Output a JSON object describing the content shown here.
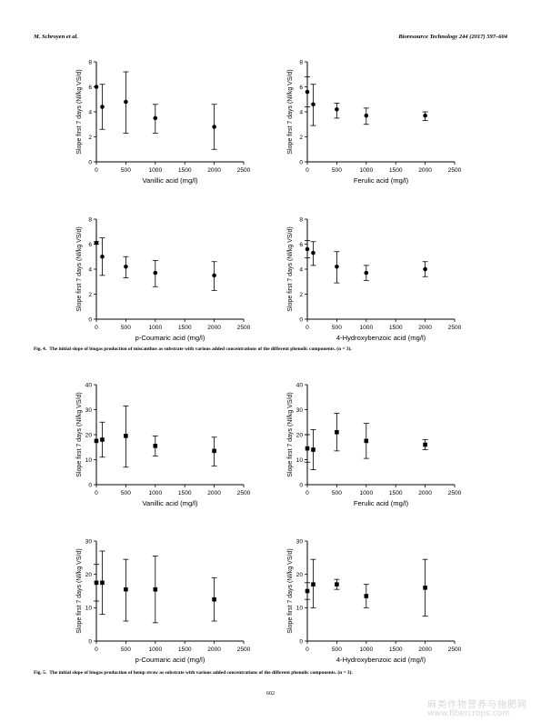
{
  "header": {
    "authors": "M. Schroyen et al.",
    "journal": "Bioresource Technology 244 (2017) 597–604"
  },
  "captions": {
    "fig4": {
      "label": "Fig. 4.",
      "text": "The initial slope of biogas production of miscanthus as substrate with various added concentrations of the different phenolic components. (n = 3)."
    },
    "fig5": {
      "label": "Fig. 5.",
      "text": "The initial slope of biogas production of hemp straw as substrate with various added concentrations of the different phenolic components. (n = 3)."
    }
  },
  "page_number": "602",
  "watermark": {
    "chinese": "麻类作物营养与施肥网",
    "url": "www.fibercrops.com"
  },
  "chart_data": [
    {
      "id": "f4a",
      "type": "scatter",
      "marker": "circle",
      "xlabel": "Vanillic acid (mg/l)",
      "ylabel": "Slope first 7 days (Nl/kg VS/d)",
      "xlim": [
        0,
        2500
      ],
      "ylim": [
        0,
        8
      ],
      "xticks": [
        "0",
        "500",
        "1000",
        "1500",
        "2000",
        "2500"
      ],
      "yticks": [
        "0",
        "2",
        "4",
        "6",
        "8"
      ],
      "points": [
        {
          "x": 0,
          "y": 6.0,
          "lo": 6.0,
          "hi": 6.0
        },
        {
          "x": 100,
          "y": 4.4,
          "lo": 2.6,
          "hi": 6.2
        },
        {
          "x": 500,
          "y": 4.8,
          "lo": 2.3,
          "hi": 7.2
        },
        {
          "x": 1000,
          "y": 3.5,
          "lo": 2.3,
          "hi": 4.6
        },
        {
          "x": 2000,
          "y": 2.8,
          "lo": 1.0,
          "hi": 4.6
        }
      ]
    },
    {
      "id": "f4b",
      "type": "scatter",
      "marker": "circle",
      "xlabel": "Ferulic acid (mg/l)",
      "ylabel": "Slope first 7 days (Nl/kg VS/d)",
      "xlim": [
        0,
        2500
      ],
      "ylim": [
        0,
        8
      ],
      "xticks": [
        "0",
        "500",
        "1000",
        "1500",
        "2000",
        "2500"
      ],
      "yticks": [
        "0",
        "2",
        "4",
        "6",
        "8"
      ],
      "points": [
        {
          "x": 0,
          "y": 5.6,
          "lo": 4.4,
          "hi": 6.8
        },
        {
          "x": 100,
          "y": 4.6,
          "lo": 2.9,
          "hi": 6.2
        },
        {
          "x": 500,
          "y": 4.2,
          "lo": 3.5,
          "hi": 4.7
        },
        {
          "x": 1000,
          "y": 3.7,
          "lo": 3.0,
          "hi": 4.3
        },
        {
          "x": 2000,
          "y": 3.7,
          "lo": 3.3,
          "hi": 4.0
        }
      ]
    },
    {
      "id": "f4c",
      "type": "scatter",
      "marker": "circle",
      "xlabel": "p-Coumaric acid (mg/l)",
      "ylabel": "Slope first 7 days (Nl/kg VS/d)",
      "xlim": [
        0,
        2500
      ],
      "ylim": [
        0,
        8
      ],
      "xticks": [
        "0",
        "500",
        "1000",
        "1500",
        "2000",
        "2500"
      ],
      "yticks": [
        "0",
        "2",
        "4",
        "6",
        "8"
      ],
      "points": [
        {
          "x": 0,
          "y": 6.1,
          "lo": 6.0,
          "hi": 6.2
        },
        {
          "x": 100,
          "y": 5.0,
          "lo": 3.5,
          "hi": 6.5
        },
        {
          "x": 500,
          "y": 4.2,
          "lo": 3.3,
          "hi": 5.0
        },
        {
          "x": 1000,
          "y": 3.7,
          "lo": 2.6,
          "hi": 4.7
        },
        {
          "x": 2000,
          "y": 3.5,
          "lo": 2.3,
          "hi": 4.6
        }
      ]
    },
    {
      "id": "f4d",
      "type": "scatter",
      "marker": "circle",
      "xlabel": "4-Hydroxybenzoic acid (mg/l)",
      "ylabel": "Slope first 7 days (Nl/kg VS/d)",
      "xlim": [
        0,
        2500
      ],
      "ylim": [
        0,
        8
      ],
      "xticks": [
        "0",
        "500",
        "1000",
        "1500",
        "2000",
        "2500"
      ],
      "yticks": [
        "0",
        "2",
        "4",
        "6",
        "8"
      ],
      "points": [
        {
          "x": 0,
          "y": 5.6,
          "lo": 4.9,
          "hi": 6.3
        },
        {
          "x": 100,
          "y": 5.3,
          "lo": 4.3,
          "hi": 6.2
        },
        {
          "x": 500,
          "y": 4.2,
          "lo": 2.9,
          "hi": 5.4
        },
        {
          "x": 1000,
          "y": 3.7,
          "lo": 3.1,
          "hi": 4.3
        },
        {
          "x": 2000,
          "y": 4.0,
          "lo": 3.4,
          "hi": 4.6
        }
      ]
    },
    {
      "id": "f5a",
      "type": "scatter",
      "marker": "square",
      "xlabel": "Vanillic acid (mg/l)",
      "ylabel": "Slope first 7 days (Nl/kg VS/d)",
      "xlim": [
        0,
        2500
      ],
      "ylim": [
        0,
        40
      ],
      "xticks": [
        "0",
        "500",
        "1000",
        "1500",
        "2000",
        "2500"
      ],
      "yticks": [
        "0",
        "10",
        "20",
        "30",
        "40"
      ],
      "points": [
        {
          "x": 0,
          "y": 17.5,
          "lo": 17.5,
          "hi": 17.5
        },
        {
          "x": 100,
          "y": 18.0,
          "lo": 11.0,
          "hi": 25.0
        },
        {
          "x": 500,
          "y": 19.5,
          "lo": 7.0,
          "hi": 31.5
        },
        {
          "x": 1000,
          "y": 15.5,
          "lo": 11.5,
          "hi": 19.5
        },
        {
          "x": 2000,
          "y": 13.5,
          "lo": 7.5,
          "hi": 19.0
        }
      ]
    },
    {
      "id": "f5b",
      "type": "scatter",
      "marker": "square",
      "xlabel": "Ferulic acid (mg/l)",
      "ylabel": "Slope first 7 days (Nl/kg VS/d)",
      "xlim": [
        0,
        2500
      ],
      "ylim": [
        0,
        40
      ],
      "xticks": [
        "0",
        "500",
        "1000",
        "1500",
        "2000",
        "2500"
      ],
      "yticks": [
        "0",
        "10",
        "20",
        "30",
        "40"
      ],
      "points": [
        {
          "x": 0,
          "y": 14.5,
          "lo": 9.0,
          "hi": 20.0
        },
        {
          "x": 100,
          "y": 14.0,
          "lo": 6.0,
          "hi": 22.0
        },
        {
          "x": 500,
          "y": 21.0,
          "lo": 13.5,
          "hi": 28.5
        },
        {
          "x": 1000,
          "y": 17.5,
          "lo": 10.5,
          "hi": 24.5
        },
        {
          "x": 2000,
          "y": 16.0,
          "lo": 14.0,
          "hi": 18.0
        }
      ]
    },
    {
      "id": "f5c",
      "type": "scatter",
      "marker": "square",
      "xlabel": "p-Coumaric acid (mg/l)",
      "ylabel": "Slope first 7 days (Nl/kg VS/d)",
      "xlim": [
        0,
        2500
      ],
      "ylim": [
        0,
        30
      ],
      "xticks": [
        "0",
        "500",
        "1000",
        "1500",
        "2000",
        "2500"
      ],
      "yticks": [
        "0",
        "10",
        "20",
        "30"
      ],
      "points": [
        {
          "x": 0,
          "y": 17.5,
          "lo": 12.0,
          "hi": 23.0
        },
        {
          "x": 100,
          "y": 17.5,
          "lo": 8.0,
          "hi": 27.0
        },
        {
          "x": 500,
          "y": 15.5,
          "lo": 6.0,
          "hi": 24.5
        },
        {
          "x": 1000,
          "y": 15.5,
          "lo": 5.5,
          "hi": 25.5
        },
        {
          "x": 2000,
          "y": 12.5,
          "lo": 6.0,
          "hi": 19.0
        }
      ]
    },
    {
      "id": "f5d",
      "type": "scatter",
      "marker": "square",
      "xlabel": "4-Hydroxybenzoic acid (mg/l)",
      "ylabel": "Slope first 7 days (Nl/kg VS/d)",
      "xlim": [
        0,
        2500
      ],
      "ylim": [
        0,
        30
      ],
      "xticks": [
        "0",
        "500",
        "1000",
        "1500",
        "2000",
        "2500"
      ],
      "yticks": [
        "0",
        "10",
        "20",
        "30"
      ],
      "points": [
        {
          "x": 0,
          "y": 15.0,
          "lo": 12.5,
          "hi": 17.5
        },
        {
          "x": 100,
          "y": 17.0,
          "lo": 10.0,
          "hi": 24.5
        },
        {
          "x": 500,
          "y": 17.0,
          "lo": 15.5,
          "hi": 18.5
        },
        {
          "x": 1000,
          "y": 13.5,
          "lo": 10.0,
          "hi": 17.0
        },
        {
          "x": 2000,
          "y": 16.0,
          "lo": 7.5,
          "hi": 24.5
        }
      ]
    }
  ]
}
